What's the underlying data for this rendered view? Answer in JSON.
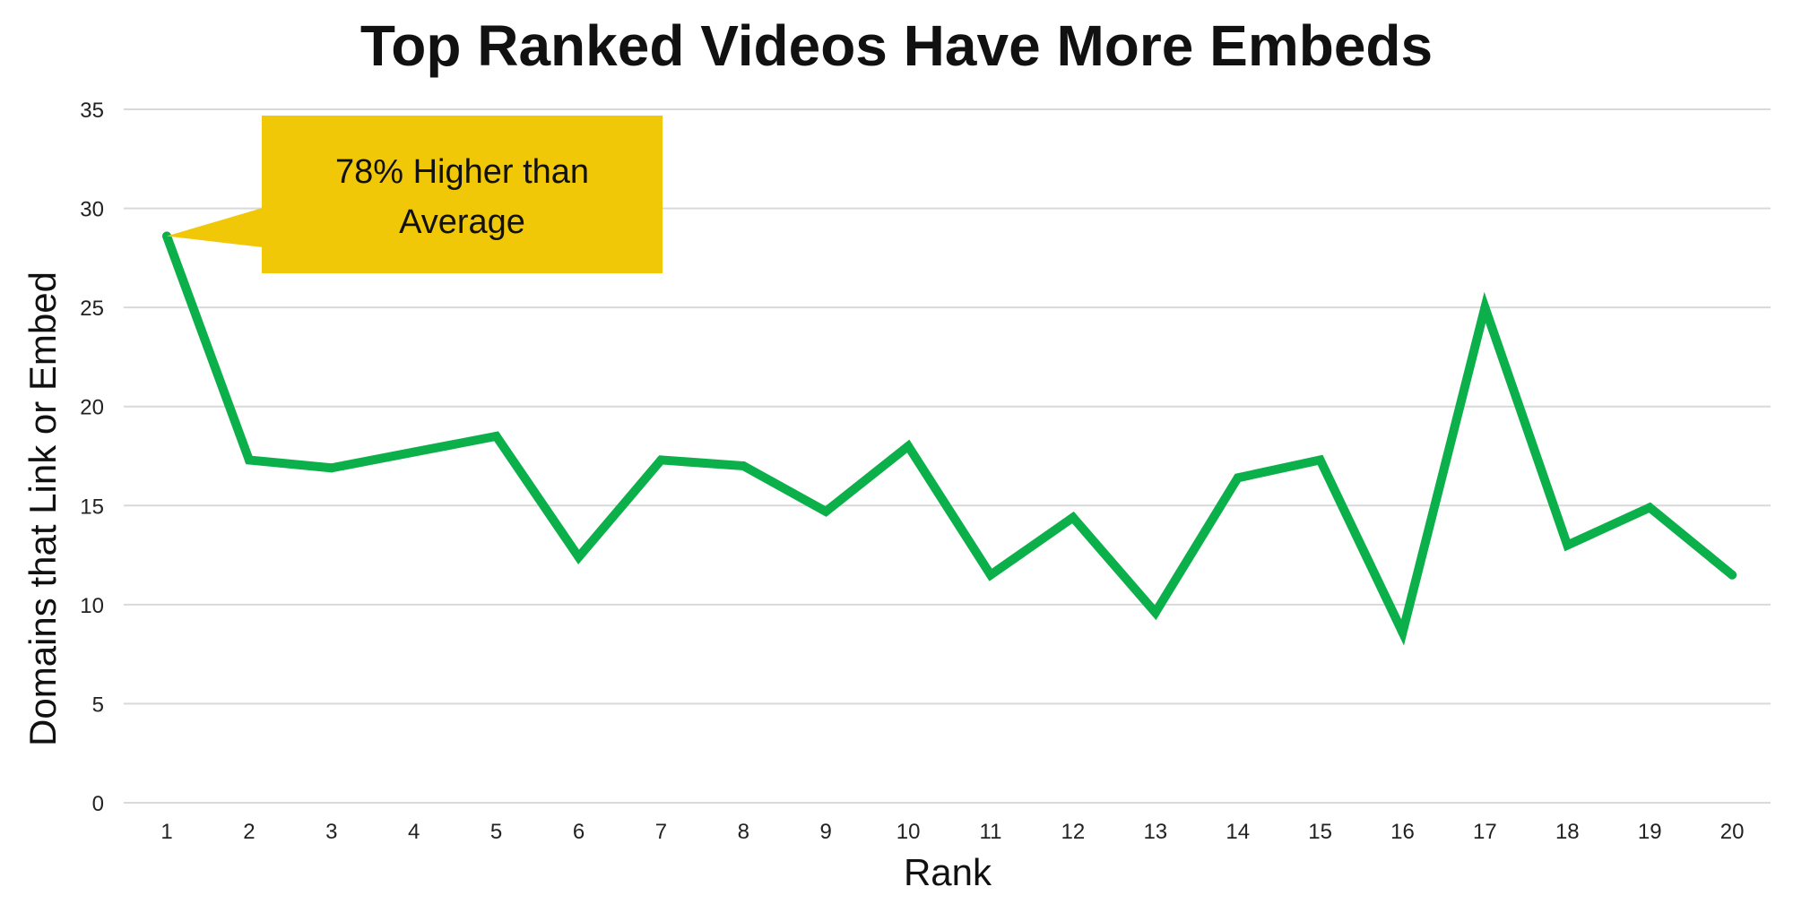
{
  "chart_data": {
    "type": "line",
    "title": "Top Ranked Videos Have More Embeds",
    "xlabel": "Rank",
    "ylabel": "Domains that Link or Embed",
    "categories": [
      "1",
      "2",
      "3",
      "4",
      "5",
      "6",
      "7",
      "8",
      "9",
      "10",
      "11",
      "12",
      "13",
      "14",
      "15",
      "16",
      "17",
      "18",
      "19",
      "20"
    ],
    "series": [
      {
        "values": [
          28.6,
          17.3,
          16.9,
          17.7,
          18.5,
          12.4,
          17.3,
          17.0,
          14.7,
          18.0,
          11.5,
          14.4,
          9.6,
          16.4,
          17.3,
          8.6,
          25.0,
          13.0,
          14.9,
          11.5
        ]
      }
    ],
    "ylim": [
      0,
      35
    ],
    "yticks": [
      0,
      5,
      10,
      15,
      20,
      25,
      30,
      35
    ],
    "grid": true,
    "line_color": "#0bb04a",
    "annotation": {
      "lines": [
        "78% Higher than",
        "Average"
      ],
      "points_to": "1",
      "background": "#f0c808"
    }
  }
}
